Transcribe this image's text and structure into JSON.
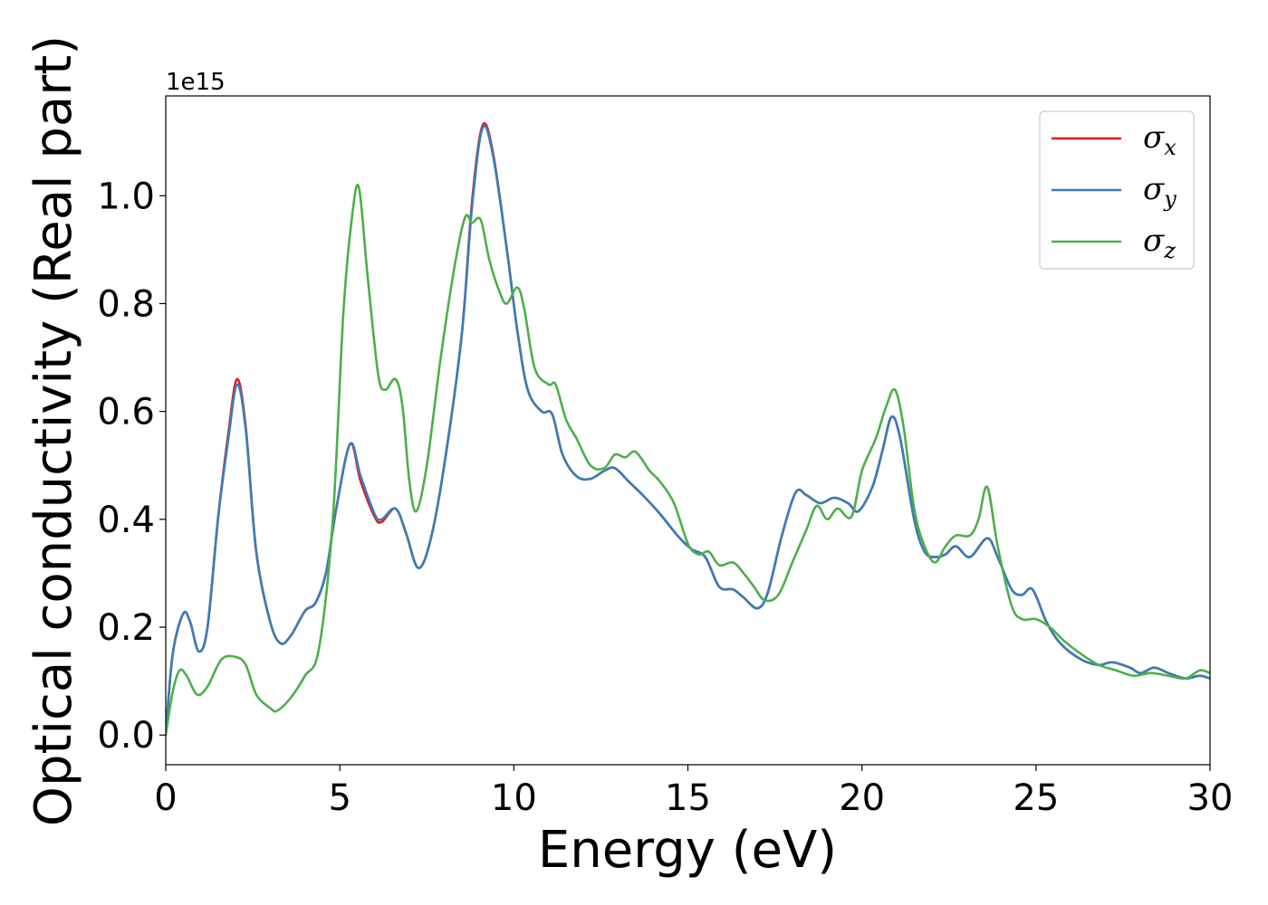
{
  "chart_data": {
    "type": "line",
    "xlabel": "Energy (eV)",
    "ylabel": "Optical conductivity (Real part)",
    "y_offset_label": "1e15",
    "xlim": [
      0,
      30
    ],
    "ylim": [
      -0.055,
      1.185
    ],
    "x_ticks": [
      0,
      5,
      10,
      15,
      20,
      25,
      30
    ],
    "x_tick_labels": [
      "0",
      "5",
      "10",
      "15",
      "20",
      "25",
      "30"
    ],
    "y_ticks": [
      0.0,
      0.2,
      0.4,
      0.6,
      0.8,
      1.0
    ],
    "y_tick_labels": [
      "0.0",
      "0.2",
      "0.4",
      "0.6",
      "0.8",
      "1.0"
    ],
    "grid": false,
    "legend": "top-right",
    "series": [
      {
        "name": "σ",
        "subscript": "x",
        "color": "#e41a1c",
        "points": [
          [
            0,
            0
          ],
          [
            0.2,
            0.15
          ],
          [
            0.5,
            0.225
          ],
          [
            0.7,
            0.21
          ],
          [
            0.95,
            0.155
          ],
          [
            1.2,
            0.2
          ],
          [
            1.5,
            0.4
          ],
          [
            1.8,
            0.56
          ],
          [
            2.05,
            0.66
          ],
          [
            2.3,
            0.57
          ],
          [
            2.6,
            0.34
          ],
          [
            3.0,
            0.21
          ],
          [
            3.3,
            0.17
          ],
          [
            3.6,
            0.185
          ],
          [
            4.0,
            0.23
          ],
          [
            4.3,
            0.245
          ],
          [
            4.6,
            0.3
          ],
          [
            4.9,
            0.42
          ],
          [
            5.3,
            0.54
          ],
          [
            5.6,
            0.47
          ],
          [
            6.0,
            0.405
          ],
          [
            6.2,
            0.395
          ],
          [
            6.6,
            0.42
          ],
          [
            6.9,
            0.375
          ],
          [
            7.25,
            0.31
          ],
          [
            7.6,
            0.36
          ],
          [
            8.0,
            0.5
          ],
          [
            8.5,
            0.74
          ],
          [
            8.8,
            0.99
          ],
          [
            9.1,
            1.13
          ],
          [
            9.4,
            1.08
          ],
          [
            9.8,
            0.9
          ],
          [
            10.1,
            0.75
          ],
          [
            10.4,
            0.64
          ],
          [
            10.8,
            0.6
          ],
          [
            11.1,
            0.595
          ],
          [
            11.4,
            0.52
          ],
          [
            11.8,
            0.48
          ],
          [
            12.2,
            0.475
          ],
          [
            12.6,
            0.49
          ],
          [
            12.9,
            0.495
          ],
          [
            13.3,
            0.47
          ],
          [
            13.7,
            0.445
          ],
          [
            14.2,
            0.41
          ],
          [
            14.7,
            0.37
          ],
          [
            15.1,
            0.345
          ],
          [
            15.5,
            0.33
          ],
          [
            15.9,
            0.275
          ],
          [
            16.3,
            0.27
          ],
          [
            16.6,
            0.255
          ],
          [
            17.0,
            0.235
          ],
          [
            17.3,
            0.265
          ],
          [
            17.7,
            0.37
          ],
          [
            18.1,
            0.45
          ],
          [
            18.4,
            0.445
          ],
          [
            18.8,
            0.43
          ],
          [
            19.2,
            0.44
          ],
          [
            19.6,
            0.43
          ],
          [
            19.9,
            0.415
          ],
          [
            20.3,
            0.46
          ],
          [
            20.6,
            0.53
          ],
          [
            20.85,
            0.59
          ],
          [
            21.1,
            0.55
          ],
          [
            21.5,
            0.4
          ],
          [
            21.8,
            0.34
          ],
          [
            22.1,
            0.33
          ],
          [
            22.4,
            0.335
          ],
          [
            22.7,
            0.35
          ],
          [
            23.1,
            0.33
          ],
          [
            23.6,
            0.365
          ],
          [
            23.9,
            0.33
          ],
          [
            24.3,
            0.27
          ],
          [
            24.6,
            0.26
          ],
          [
            24.9,
            0.27
          ],
          [
            25.3,
            0.21
          ],
          [
            25.7,
            0.17
          ],
          [
            26.3,
            0.14
          ],
          [
            26.8,
            0.13
          ],
          [
            27.2,
            0.135
          ],
          [
            27.7,
            0.125
          ],
          [
            28.0,
            0.115
          ],
          [
            28.4,
            0.125
          ],
          [
            28.8,
            0.115
          ],
          [
            29.3,
            0.105
          ],
          [
            29.7,
            0.11
          ],
          [
            30,
            0.105
          ]
        ]
      },
      {
        "name": "σ",
        "subscript": "y",
        "color": "#377eb8",
        "points": [
          [
            0,
            0
          ],
          [
            0.2,
            0.15
          ],
          [
            0.5,
            0.225
          ],
          [
            0.7,
            0.21
          ],
          [
            0.95,
            0.155
          ],
          [
            1.2,
            0.2
          ],
          [
            1.5,
            0.4
          ],
          [
            1.8,
            0.55
          ],
          [
            2.05,
            0.65
          ],
          [
            2.3,
            0.565
          ],
          [
            2.6,
            0.34
          ],
          [
            3.0,
            0.21
          ],
          [
            3.3,
            0.17
          ],
          [
            3.6,
            0.185
          ],
          [
            4.0,
            0.23
          ],
          [
            4.3,
            0.245
          ],
          [
            4.6,
            0.3
          ],
          [
            4.9,
            0.42
          ],
          [
            5.3,
            0.54
          ],
          [
            5.6,
            0.48
          ],
          [
            6.0,
            0.41
          ],
          [
            6.2,
            0.4
          ],
          [
            6.6,
            0.42
          ],
          [
            6.9,
            0.375
          ],
          [
            7.25,
            0.31
          ],
          [
            7.6,
            0.36
          ],
          [
            8.0,
            0.5
          ],
          [
            8.5,
            0.74
          ],
          [
            8.8,
            0.98
          ],
          [
            9.1,
            1.125
          ],
          [
            9.4,
            1.075
          ],
          [
            9.8,
            0.9
          ],
          [
            10.1,
            0.75
          ],
          [
            10.4,
            0.64
          ],
          [
            10.8,
            0.6
          ],
          [
            11.1,
            0.595
          ],
          [
            11.4,
            0.52
          ],
          [
            11.8,
            0.48
          ],
          [
            12.2,
            0.475
          ],
          [
            12.6,
            0.49
          ],
          [
            12.9,
            0.495
          ],
          [
            13.3,
            0.47
          ],
          [
            13.7,
            0.445
          ],
          [
            14.2,
            0.41
          ],
          [
            14.7,
            0.37
          ],
          [
            15.1,
            0.345
          ],
          [
            15.5,
            0.33
          ],
          [
            15.9,
            0.275
          ],
          [
            16.3,
            0.27
          ],
          [
            16.6,
            0.255
          ],
          [
            17.0,
            0.235
          ],
          [
            17.3,
            0.265
          ],
          [
            17.7,
            0.37
          ],
          [
            18.1,
            0.45
          ],
          [
            18.4,
            0.445
          ],
          [
            18.8,
            0.43
          ],
          [
            19.2,
            0.44
          ],
          [
            19.6,
            0.43
          ],
          [
            19.9,
            0.415
          ],
          [
            20.3,
            0.46
          ],
          [
            20.6,
            0.53
          ],
          [
            20.85,
            0.59
          ],
          [
            21.1,
            0.55
          ],
          [
            21.5,
            0.4
          ],
          [
            21.8,
            0.34
          ],
          [
            22.1,
            0.33
          ],
          [
            22.4,
            0.335
          ],
          [
            22.7,
            0.35
          ],
          [
            23.1,
            0.33
          ],
          [
            23.6,
            0.365
          ],
          [
            23.9,
            0.33
          ],
          [
            24.3,
            0.27
          ],
          [
            24.6,
            0.26
          ],
          [
            24.9,
            0.27
          ],
          [
            25.3,
            0.21
          ],
          [
            25.7,
            0.17
          ],
          [
            26.3,
            0.14
          ],
          [
            26.8,
            0.13
          ],
          [
            27.2,
            0.135
          ],
          [
            27.7,
            0.125
          ],
          [
            28.0,
            0.115
          ],
          [
            28.4,
            0.125
          ],
          [
            28.8,
            0.115
          ],
          [
            29.3,
            0.105
          ],
          [
            29.7,
            0.11
          ],
          [
            30,
            0.105
          ]
        ]
      },
      {
        "name": "σ",
        "subscript": "z",
        "color": "#4daf4a",
        "points": [
          [
            0,
            0
          ],
          [
            0.2,
            0.08
          ],
          [
            0.4,
            0.12
          ],
          [
            0.6,
            0.11
          ],
          [
            0.9,
            0.075
          ],
          [
            1.2,
            0.09
          ],
          [
            1.6,
            0.14
          ],
          [
            2.0,
            0.145
          ],
          [
            2.3,
            0.13
          ],
          [
            2.6,
            0.075
          ],
          [
            3.0,
            0.05
          ],
          [
            3.2,
            0.045
          ],
          [
            3.6,
            0.07
          ],
          [
            4.0,
            0.11
          ],
          [
            4.4,
            0.16
          ],
          [
            4.8,
            0.4
          ],
          [
            5.1,
            0.78
          ],
          [
            5.35,
            0.96
          ],
          [
            5.55,
            1.015
          ],
          [
            5.8,
            0.85
          ],
          [
            6.1,
            0.67
          ],
          [
            6.3,
            0.64
          ],
          [
            6.6,
            0.66
          ],
          [
            6.8,
            0.61
          ],
          [
            7.0,
            0.47
          ],
          [
            7.2,
            0.415
          ],
          [
            7.5,
            0.5
          ],
          [
            7.9,
            0.7
          ],
          [
            8.3,
            0.87
          ],
          [
            8.6,
            0.96
          ],
          [
            8.8,
            0.95
          ],
          [
            9.05,
            0.955
          ],
          [
            9.3,
            0.88
          ],
          [
            9.6,
            0.82
          ],
          [
            9.8,
            0.8
          ],
          [
            10.1,
            0.83
          ],
          [
            10.3,
            0.79
          ],
          [
            10.6,
            0.68
          ],
          [
            11.0,
            0.65
          ],
          [
            11.2,
            0.65
          ],
          [
            11.5,
            0.585
          ],
          [
            11.8,
            0.55
          ],
          [
            12.2,
            0.5
          ],
          [
            12.6,
            0.495
          ],
          [
            12.9,
            0.52
          ],
          [
            13.2,
            0.515
          ],
          [
            13.5,
            0.525
          ],
          [
            13.9,
            0.49
          ],
          [
            14.2,
            0.47
          ],
          [
            14.6,
            0.43
          ],
          [
            15.0,
            0.355
          ],
          [
            15.3,
            0.335
          ],
          [
            15.6,
            0.34
          ],
          [
            15.9,
            0.315
          ],
          [
            16.3,
            0.32
          ],
          [
            16.6,
            0.3
          ],
          [
            16.9,
            0.275
          ],
          [
            17.2,
            0.25
          ],
          [
            17.6,
            0.26
          ],
          [
            18.0,
            0.32
          ],
          [
            18.4,
            0.38
          ],
          [
            18.7,
            0.425
          ],
          [
            19.0,
            0.4
          ],
          [
            19.3,
            0.42
          ],
          [
            19.7,
            0.405
          ],
          [
            20.0,
            0.49
          ],
          [
            20.4,
            0.55
          ],
          [
            20.7,
            0.61
          ],
          [
            20.95,
            0.64
          ],
          [
            21.2,
            0.57
          ],
          [
            21.5,
            0.42
          ],
          [
            21.8,
            0.35
          ],
          [
            22.1,
            0.32
          ],
          [
            22.4,
            0.35
          ],
          [
            22.7,
            0.37
          ],
          [
            23.1,
            0.37
          ],
          [
            23.35,
            0.4
          ],
          [
            23.6,
            0.46
          ],
          [
            23.9,
            0.35
          ],
          [
            24.3,
            0.24
          ],
          [
            24.6,
            0.215
          ],
          [
            25.0,
            0.215
          ],
          [
            25.4,
            0.2
          ],
          [
            25.8,
            0.175
          ],
          [
            26.3,
            0.15
          ],
          [
            26.8,
            0.13
          ],
          [
            27.3,
            0.12
          ],
          [
            27.8,
            0.11
          ],
          [
            28.3,
            0.115
          ],
          [
            28.8,
            0.11
          ],
          [
            29.3,
            0.105
          ],
          [
            29.7,
            0.12
          ],
          [
            30,
            0.115
          ]
        ]
      }
    ]
  }
}
